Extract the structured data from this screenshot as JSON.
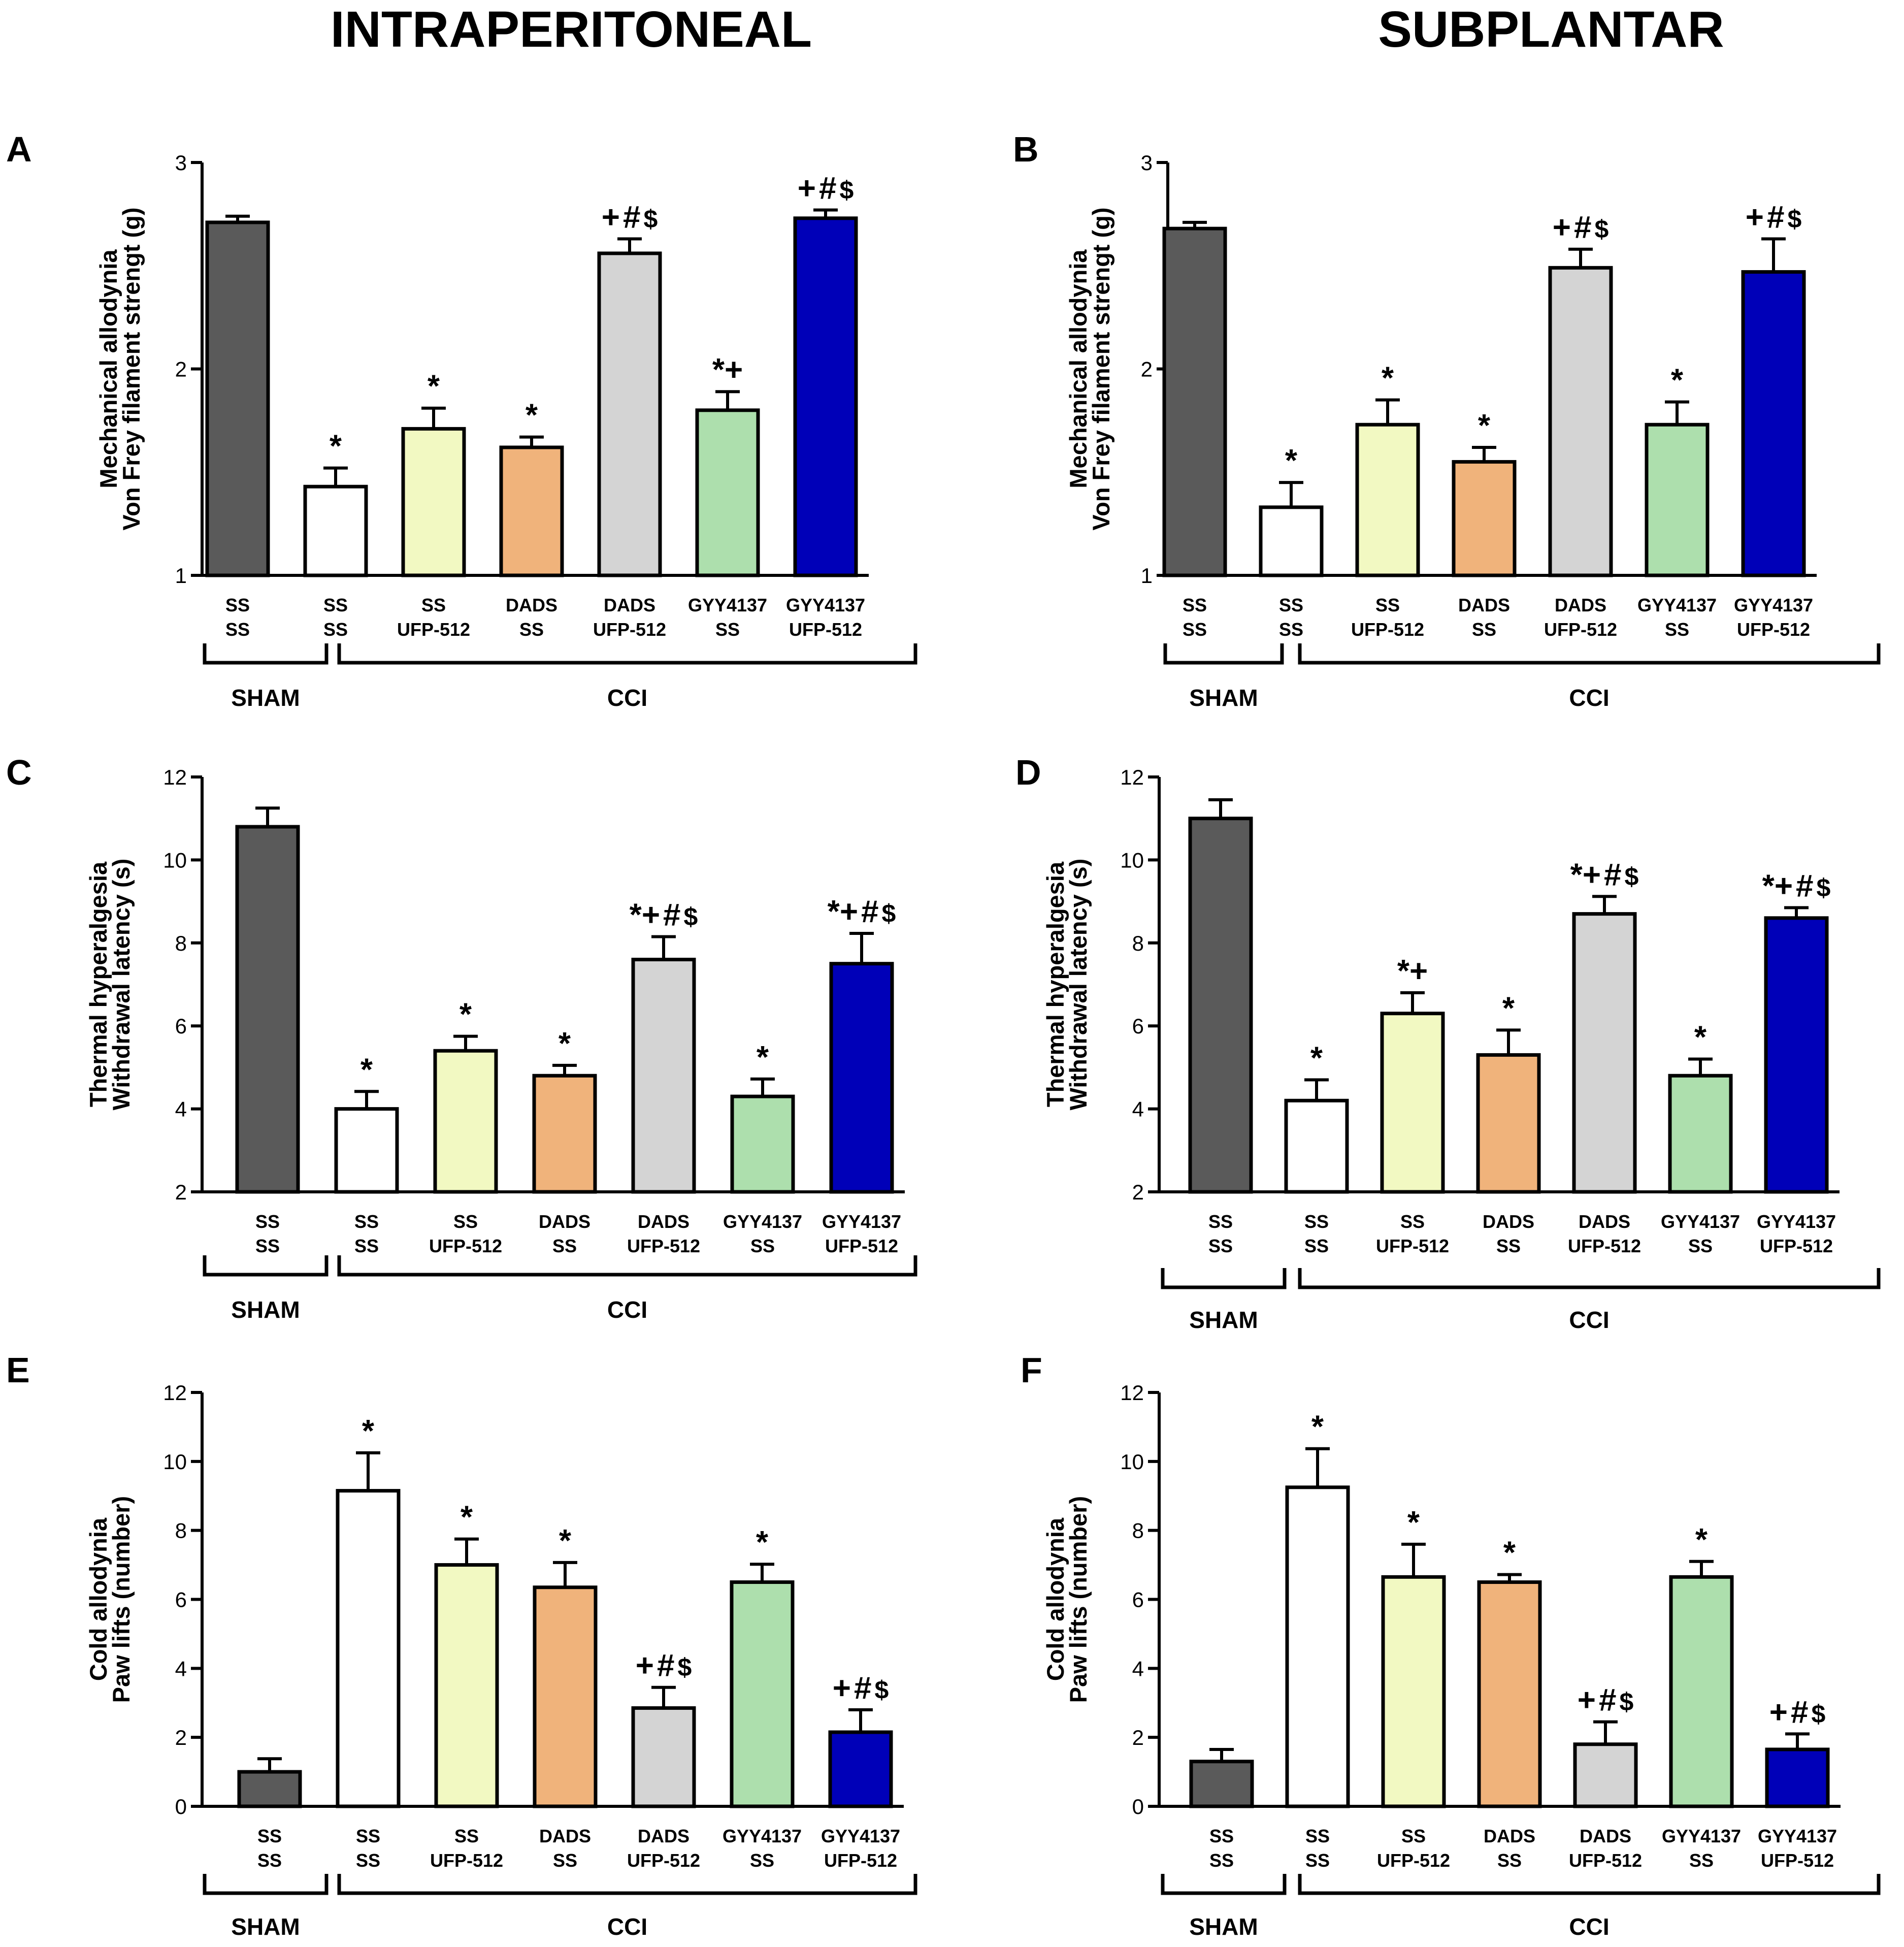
{
  "column_titles": [
    "INTRAPERITONEAL",
    "SUBPLANTAR"
  ],
  "colors": {
    "SHAM_SS_SS": "#5a5a5a",
    "CCI_SS_SS": "#ffffff",
    "CCI_SS_UFP": "#f2f9c2",
    "CCI_DADS_SS": "#f0b37b",
    "CCI_DADS_UFP": "#d4d4d4",
    "CCI_GYY_SS": "#addfad",
    "CCI_GYY_UFP": "#0000b8",
    "axis": "#000000"
  },
  "chart_data": [
    {
      "panel": "A",
      "type": "bar",
      "ylabel": [
        "Mechanical allodynia",
        "Von Frey filament strengt (g)"
      ],
      "ylim": [
        1,
        3
      ],
      "yticks": [
        "1",
        "2",
        "3"
      ],
      "categories": [
        [
          "SS",
          "SS"
        ],
        [
          "SS",
          "SS"
        ],
        [
          "SS",
          "UFP-512"
        ],
        [
          "DADS",
          "SS"
        ],
        [
          "DADS",
          "UFP-512"
        ],
        [
          "GYY4137",
          "SS"
        ],
        [
          "GYY4137",
          "UFP-512"
        ]
      ],
      "groups": [
        "SHAM",
        "CCI"
      ],
      "values": [
        2.71,
        1.43,
        1.71,
        1.62,
        2.56,
        1.8,
        2.73
      ],
      "errors": [
        0.03,
        0.09,
        0.1,
        0.05,
        0.07,
        0.09,
        0.04
      ],
      "sig": [
        "",
        "*",
        "*",
        "*",
        "+#$",
        "*+",
        "+#$"
      ]
    },
    {
      "panel": "B",
      "type": "bar",
      "ylabel": [
        "Mechanical allodynia",
        "Von Frey filament strengt (g)"
      ],
      "ylim": [
        1,
        3
      ],
      "yticks": [
        "1",
        "2",
        "3"
      ],
      "categories": [
        [
          "SS",
          "SS"
        ],
        [
          "SS",
          "SS"
        ],
        [
          "SS",
          "UFP-512"
        ],
        [
          "DADS",
          "SS"
        ],
        [
          "DADS",
          "UFP-512"
        ],
        [
          "GYY4137",
          "SS"
        ],
        [
          "GYY4137",
          "UFP-512"
        ]
      ],
      "groups": [
        "SHAM",
        "CCI"
      ],
      "values": [
        2.68,
        1.33,
        1.73,
        1.55,
        2.49,
        1.73,
        2.47
      ],
      "errors": [
        0.03,
        0.12,
        0.12,
        0.07,
        0.09,
        0.11,
        0.16
      ],
      "sig": [
        "",
        "*",
        "*",
        "*",
        "+#$",
        "*",
        "+#$"
      ]
    },
    {
      "panel": "C",
      "type": "bar",
      "ylabel": [
        "Thermal hyperalgesia",
        "Withdrawal latency (s)"
      ],
      "ylim": [
        2,
        12
      ],
      "yticks": [
        "2",
        "4",
        "6",
        "8",
        "10",
        "12"
      ],
      "categories": [
        [
          "SS",
          "SS"
        ],
        [
          "SS",
          "SS"
        ],
        [
          "SS",
          "UFP-512"
        ],
        [
          "DADS",
          "SS"
        ],
        [
          "DADS",
          "UFP-512"
        ],
        [
          "GYY4137",
          "SS"
        ],
        [
          "GYY4137",
          "UFP-512"
        ]
      ],
      "groups": [
        "SHAM",
        "CCI"
      ],
      "values": [
        10.8,
        4.0,
        5.4,
        4.8,
        7.6,
        4.3,
        7.5
      ],
      "errors": [
        0.45,
        0.42,
        0.35,
        0.25,
        0.55,
        0.42,
        0.73
      ],
      "sig": [
        "",
        "*",
        "*",
        "*",
        "*+#$",
        "*",
        "*+#$"
      ]
    },
    {
      "panel": "D",
      "type": "bar",
      "ylabel": [
        "Thermal hyperalgesia",
        "Withdrawal latency (s)"
      ],
      "ylim": [
        2,
        12
      ],
      "yticks": [
        "2",
        "4",
        "6",
        "8",
        "10",
        "12"
      ],
      "categories": [
        [
          "SS",
          "SS"
        ],
        [
          "SS",
          "SS"
        ],
        [
          "SS",
          "UFP-512"
        ],
        [
          "DADS",
          "SS"
        ],
        [
          "DADS",
          "UFP-512"
        ],
        [
          "GYY4137",
          "SS"
        ],
        [
          "GYY4137",
          "UFP-512"
        ]
      ],
      "groups": [
        "SHAM",
        "CCI"
      ],
      "values": [
        11.0,
        4.2,
        6.3,
        5.3,
        8.7,
        4.8,
        8.6
      ],
      "errors": [
        0.45,
        0.5,
        0.5,
        0.6,
        0.42,
        0.4,
        0.25
      ],
      "sig": [
        "",
        "*",
        "*+",
        "*",
        "*+#$",
        "*",
        "*+#$"
      ]
    },
    {
      "panel": "E",
      "type": "bar",
      "ylabel": [
        "Cold allodynia",
        "Paw lifts (number)"
      ],
      "ylim": [
        0,
        12
      ],
      "yticks": [
        "0",
        "2",
        "4",
        "6",
        "8",
        "10",
        "12"
      ],
      "categories": [
        [
          "SS",
          "SS"
        ],
        [
          "SS",
          "SS"
        ],
        [
          "SS",
          "UFP-512"
        ],
        [
          "DADS",
          "SS"
        ],
        [
          "DADS",
          "UFP-512"
        ],
        [
          "GYY4137",
          "SS"
        ],
        [
          "GYY4137",
          "UFP-512"
        ]
      ],
      "groups": [
        "SHAM",
        "CCI"
      ],
      "values": [
        1.0,
        9.15,
        7.0,
        6.35,
        2.85,
        6.5,
        2.15
      ],
      "errors": [
        0.38,
        1.1,
        0.75,
        0.72,
        0.6,
        0.52,
        0.65
      ],
      "sig": [
        "",
        "*",
        "*",
        "*",
        "+#$",
        "*",
        "+#$"
      ]
    },
    {
      "panel": "F",
      "type": "bar",
      "ylabel": [
        "Cold allodynia",
        "Paw lifts (number)"
      ],
      "ylim": [
        0,
        12
      ],
      "yticks": [
        "0",
        "2",
        "4",
        "6",
        "8",
        "10",
        "12"
      ],
      "categories": [
        [
          "SS",
          "SS"
        ],
        [
          "SS",
          "SS"
        ],
        [
          "SS",
          "UFP-512"
        ],
        [
          "DADS",
          "SS"
        ],
        [
          "DADS",
          "UFP-512"
        ],
        [
          "GYY4137",
          "SS"
        ],
        [
          "GYY4137",
          "UFP-512"
        ]
      ],
      "groups": [
        "SHAM",
        "CCI"
      ],
      "values": [
        1.3,
        9.25,
        6.65,
        6.5,
        1.8,
        6.65,
        1.65
      ],
      "errors": [
        0.35,
        1.12,
        0.95,
        0.22,
        0.65,
        0.45,
        0.45
      ],
      "sig": [
        "",
        "*",
        "*",
        "*",
        "+#$",
        "*",
        "+#$"
      ]
    }
  ]
}
